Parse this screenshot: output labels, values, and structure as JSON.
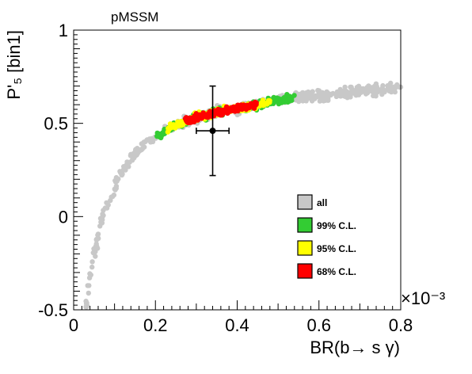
{
  "chart_data": {
    "type": "scatter",
    "title": "pMSSM",
    "xlabel": "BR(b→ s γ)",
    "ylabel": "P'₅ [bin1]",
    "x_exponent_label": "×10⁻³",
    "xlim": [
      0,
      0.8
    ],
    "ylim": [
      -0.5,
      1
    ],
    "x_ticks": [
      0,
      0.2,
      0.4,
      0.6,
      0.8
    ],
    "x_tick_labels": [
      "0",
      "0.2",
      "0.4",
      "0.6",
      "0.8"
    ],
    "y_ticks": [
      -0.5,
      0,
      0.5,
      1
    ],
    "y_tick_labels": [
      "-0.5",
      "0",
      "0.5",
      "1"
    ],
    "legend_position": "lower-right",
    "series": [
      {
        "name": "all",
        "color": "#c8c8c8",
        "trend": [
          [
            0.03,
            -0.49
          ],
          [
            0.04,
            -0.32
          ],
          [
            0.05,
            -0.2
          ],
          [
            0.06,
            -0.1
          ],
          [
            0.07,
            -0.01
          ],
          [
            0.08,
            0.06
          ],
          [
            0.1,
            0.16
          ],
          [
            0.12,
            0.25
          ],
          [
            0.14,
            0.31
          ],
          [
            0.16,
            0.36
          ],
          [
            0.18,
            0.4
          ],
          [
            0.2,
            0.43
          ],
          [
            0.25,
            0.49
          ],
          [
            0.3,
            0.53
          ],
          [
            0.35,
            0.56
          ],
          [
            0.4,
            0.58
          ],
          [
            0.45,
            0.6
          ],
          [
            0.5,
            0.62
          ],
          [
            0.55,
            0.64
          ],
          [
            0.6,
            0.65
          ],
          [
            0.65,
            0.66
          ],
          [
            0.7,
            0.67
          ],
          [
            0.75,
            0.68
          ],
          [
            0.8,
            0.69
          ]
        ],
        "x_range": [
          0.03,
          0.8
        ],
        "band_width": 0.025
      },
      {
        "name": "99% C.L.",
        "color": "#33cc33",
        "x_range": [
          0.2,
          0.54
        ],
        "band_width": 0.02
      },
      {
        "name": "95% C.L.",
        "color": "#ffff00",
        "x_range": [
          0.23,
          0.48
        ],
        "band_width": 0.018
      },
      {
        "name": "68% C.L.",
        "color": "#ff0000",
        "x_range": [
          0.27,
          0.45
        ],
        "band_width": 0.016
      }
    ],
    "measurement": {
      "x": 0.34,
      "y": 0.46,
      "x_err": 0.04,
      "y_err_up": 0.24,
      "y_err_down": 0.24
    }
  }
}
